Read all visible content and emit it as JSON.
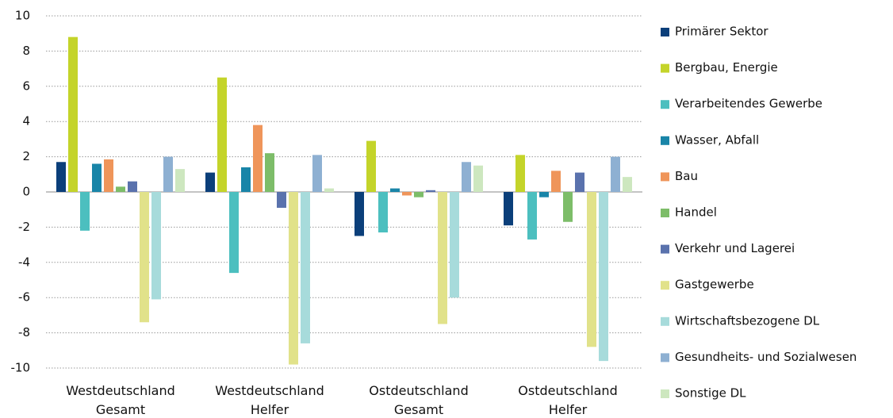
{
  "chart_data": {
    "type": "bar",
    "categories": [
      "Westdeutschland Gesamt",
      "Westdeutschland Helfer",
      "Ostdeutschland Gesamt",
      "Ostdeutschland Helfer"
    ],
    "series": [
      {
        "name": "Primärer Sektor",
        "color": "#0b3f7a",
        "values": [
          1.7,
          1.1,
          -2.5,
          -1.9
        ]
      },
      {
        "name": "Bergbau, Energie",
        "color": "#c4d42a",
        "values": [
          8.8,
          6.5,
          2.9,
          2.1
        ]
      },
      {
        "name": "Verarbeitendes Gewerbe",
        "color": "#4cbfbf",
        "values": [
          -2.2,
          -4.6,
          -2.3,
          -2.7
        ]
      },
      {
        "name": "Wasser, Abfall",
        "color": "#1985a8",
        "values": [
          1.6,
          1.4,
          0.2,
          -0.3
        ]
      },
      {
        "name": "Bau",
        "color": "#ef955a",
        "values": [
          1.85,
          3.8,
          -0.2,
          1.2
        ]
      },
      {
        "name": "Handel",
        "color": "#7dbd69",
        "values": [
          0.3,
          2.2,
          -0.3,
          -1.7
        ]
      },
      {
        "name": "Verkehr und Lagerei",
        "color": "#5a72ad",
        "values": [
          0.6,
          -0.9,
          0.1,
          1.1
        ]
      },
      {
        "name": "Gastgewerbe",
        "color": "#e1e28a",
        "values": [
          -7.4,
          -9.8,
          -7.5,
          -8.8
        ]
      },
      {
        "name": "Wirtschaftsbezogene DL",
        "color": "#a7dbdb",
        "values": [
          -6.1,
          -8.6,
          -6.0,
          -9.6
        ]
      },
      {
        "name": "Gesundheits- und Sozialwesen",
        "color": "#8eb0d2",
        "values": [
          2.0,
          2.1,
          1.7,
          2.0
        ]
      },
      {
        "name": "Sonstige DL",
        "color": "#cde7bf",
        "values": [
          1.3,
          0.2,
          1.5,
          0.85
        ]
      }
    ],
    "ylim": [
      -10,
      10
    ],
    "yticks": [
      -10,
      -8,
      -6,
      -4,
      -2,
      0,
      2,
      4,
      6,
      8,
      10
    ],
    "grid": true,
    "legend": "right"
  }
}
